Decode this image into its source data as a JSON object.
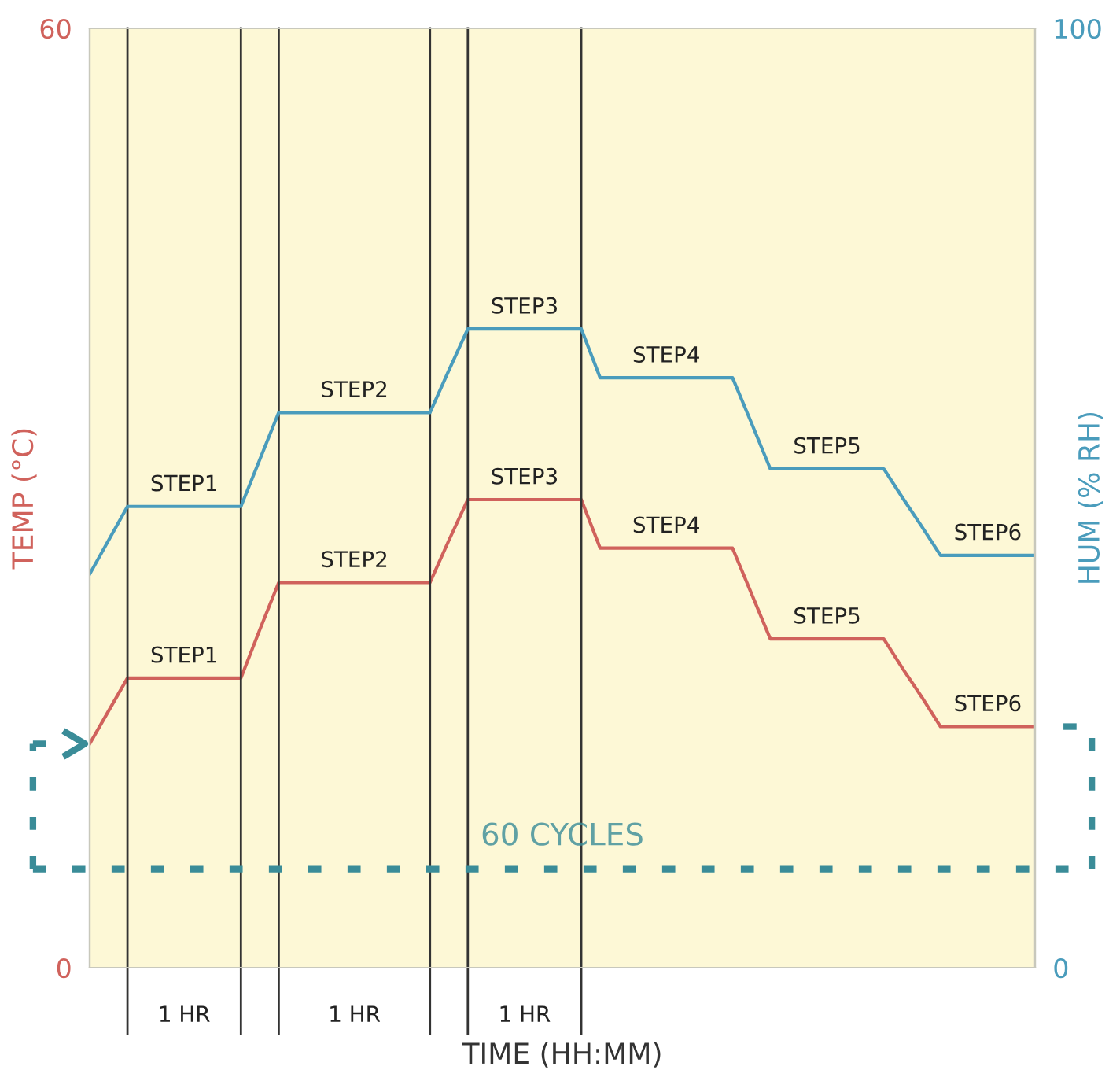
{
  "chart_data": {
    "type": "line",
    "xlabel": "TIME (HH:MM)",
    "ylabel": "TEMP (°C)",
    "y2label": "HUM (% RH)",
    "categories": [
      null,
      null,
      null,
      null,
      null,
      null,
      null,
      null,
      null,
      null,
      null,
      null,
      null,
      null,
      null,
      null,
      null,
      null,
      null,
      null,
      null,
      null,
      null,
      null,
      null,
      null,
      null,
      null,
      null,
      null,
      null,
      null,
      null,
      null,
      null,
      null,
      null,
      null,
      null,
      null,
      null,
      null,
      null,
      null,
      null,
      null,
      null,
      null,
      null,
      null,
      null
    ],
    "series": [
      {
        "color": "#d0625c",
        "values": [
          14.3,
          16.4,
          18.5,
          18.5,
          18.5,
          18.5,
          18.5,
          18.5,
          18.5,
          21.6,
          24.6,
          24.6,
          24.6,
          24.6,
          24.6,
          24.6,
          24.6,
          24.6,
          24.6,
          27.3,
          29.9,
          29.9,
          29.9,
          29.9,
          29.9,
          29.9,
          29.9,
          26.8,
          26.8,
          26.8,
          26.8,
          26.8,
          26.8,
          26.8,
          26.8,
          23.9,
          21.0,
          21.0,
          21.0,
          21.0,
          21.0,
          21.0,
          21.0,
          19.1,
          17.3,
          15.4,
          15.4,
          15.4,
          15.4,
          15.4,
          15.4
        ]
      },
      {
        "color": "#4a9cbc",
        "axis": "y2",
        "values": [
          41.9,
          45.5,
          49.1,
          49.1,
          49.1,
          49.1,
          49.1,
          49.1,
          49.1,
          54.1,
          59.1,
          59.1,
          59.1,
          59.1,
          59.1,
          59.1,
          59.1,
          59.1,
          59.1,
          63.6,
          68.0,
          68.0,
          68.0,
          68.0,
          68.0,
          68.0,
          68.0,
          62.8,
          62.8,
          62.8,
          62.8,
          62.8,
          62.8,
          62.8,
          62.8,
          58.0,
          53.1,
          53.1,
          53.1,
          53.1,
          53.1,
          53.1,
          53.1,
          50.0,
          47.0,
          43.9,
          43.9,
          43.9,
          43.9,
          43.9,
          43.9
        ]
      }
    ],
    "grid": "x",
    "ylim": [
      0,
      60
    ],
    "yticks": [
      0,
      60
    ],
    "y2lim": [
      0,
      100
    ],
    "y2ticks": [
      0,
      100
    ],
    "ref_lines": [
      {
        "axis": "y",
        "value": 6.3,
        "label": "60 CYCLES",
        "color": "#3a8c98",
        "line_style": "dashed"
      }
    ],
    "annotations": [
      "STEP1",
      "STEP2",
      "STEP3",
      "STEP4",
      "STEP5",
      "STEP6",
      "STEP1",
      "STEP2",
      "STEP3",
      "STEP4",
      "STEP5",
      "STEP6",
      "1 HR",
      "1 HR",
      "1 HR"
    ]
  }
}
